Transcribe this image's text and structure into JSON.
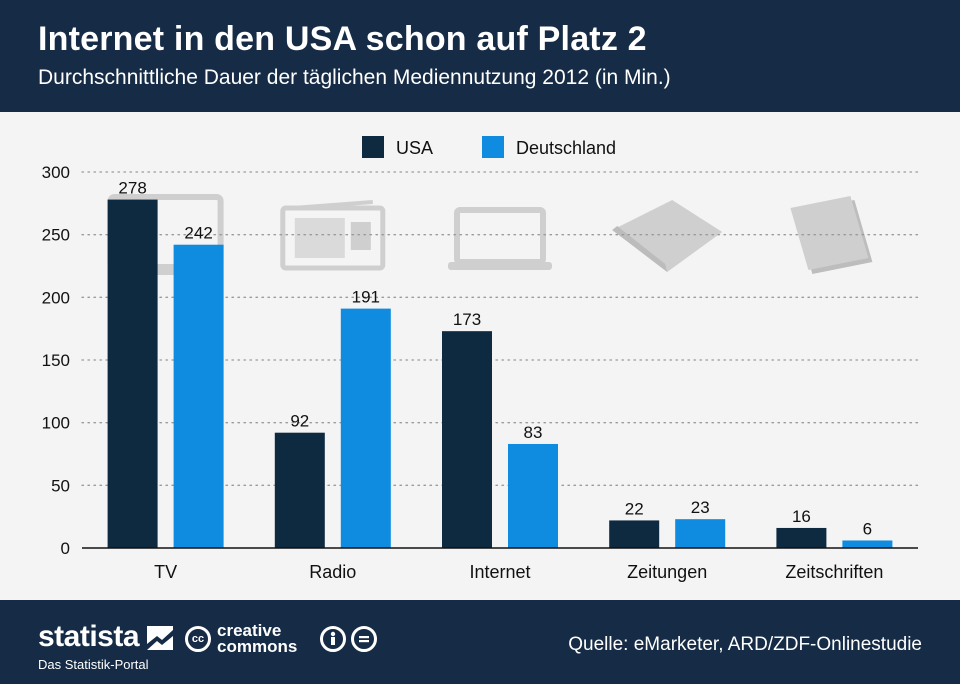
{
  "header": {
    "title": "Internet in den USA schon auf Platz 2",
    "subtitle": "Durchschnittliche Dauer der täglichen Mediennutzung 2012 (in Min.)"
  },
  "footer": {
    "brand": "statista",
    "brand_sub": "Das Statistik-Portal",
    "cc_logo": "cc",
    "cc_line1": "creative",
    "cc_line2": "commons",
    "source": "Quelle: eMarketer, ARD/ZDF-Onlinestudie"
  },
  "colors": {
    "header_bg": "#162b45",
    "usa": "#0d2a40",
    "deutschland": "#0f8be0",
    "background": "#f4f4f4"
  },
  "icons": [
    "tv-icon",
    "radio-icon",
    "laptop-icon",
    "newspaper-icon",
    "magazine-icon"
  ],
  "chart_data": {
    "type": "bar",
    "categories": [
      "TV",
      "Radio",
      "Internet",
      "Zeitungen",
      "Zeitschriften"
    ],
    "series": [
      {
        "name": "USA",
        "values": [
          278,
          92,
          173,
          22,
          16
        ],
        "color": "#0d2a40"
      },
      {
        "name": "Deutschland",
        "values": [
          242,
          191,
          83,
          23,
          6
        ],
        "color": "#0f8be0"
      }
    ],
    "ylim": [
      0,
      300
    ],
    "yticks": [
      0,
      50,
      100,
      150,
      200,
      250,
      300
    ],
    "grid": true,
    "legend": "top-center"
  }
}
